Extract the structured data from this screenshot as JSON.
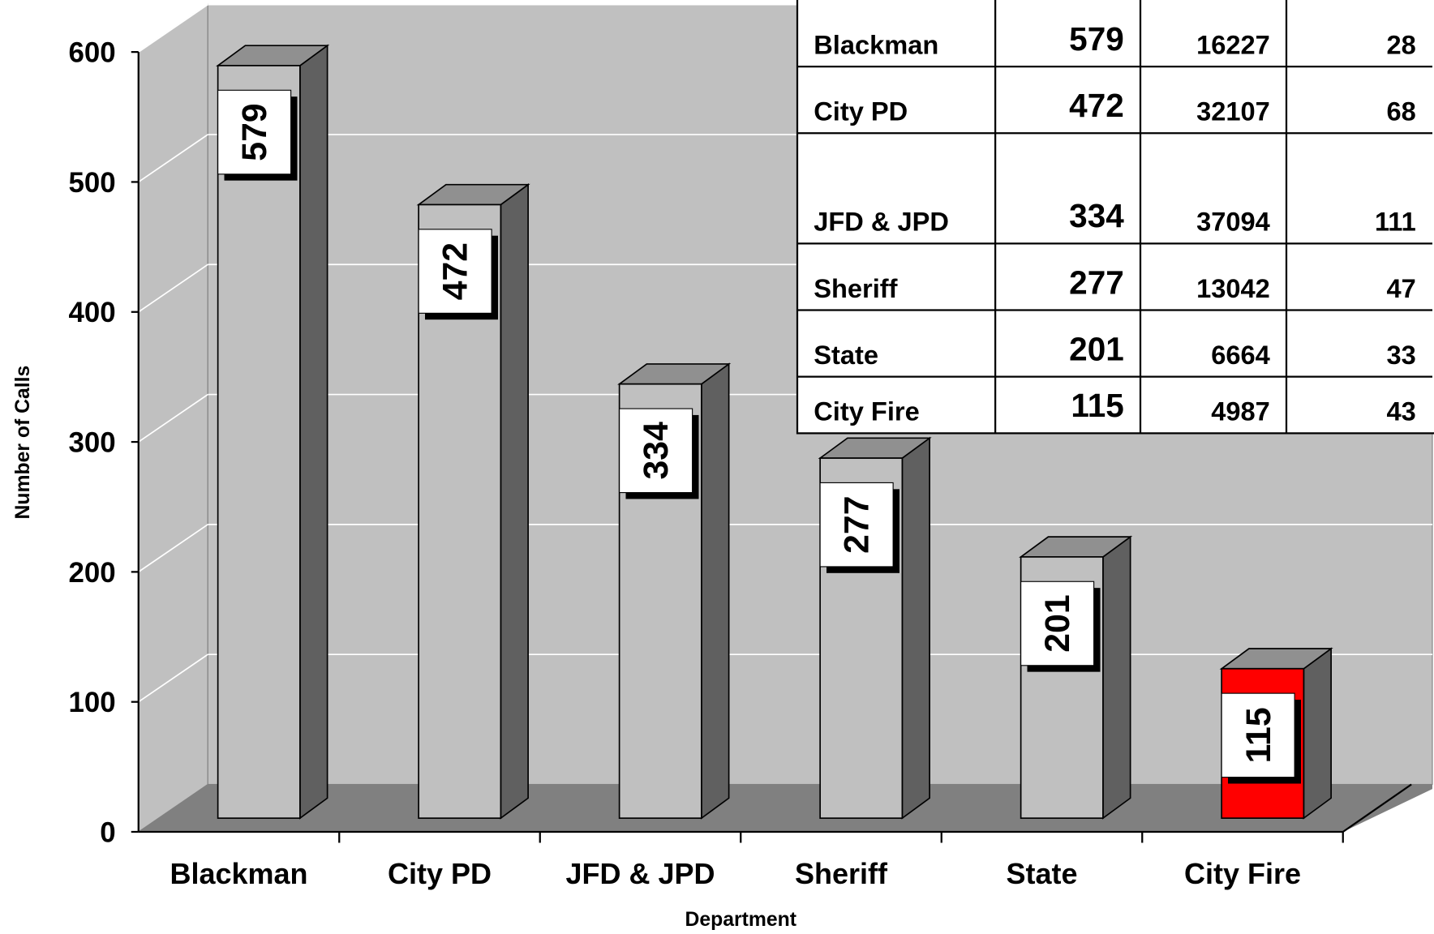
{
  "chart_data": {
    "type": "bar3d",
    "categories": [
      "Blackman",
      "City PD",
      "JFD & JPD",
      "Sheriff",
      "State",
      "City Fire"
    ],
    "values": [
      579,
      472,
      334,
      277,
      201,
      115
    ],
    "colors": [
      "#c0c0c0",
      "#c0c0c0",
      "#c0c0c0",
      "#c0c0c0",
      "#c0c0c0",
      "#ff0000"
    ],
    "ylim": [
      0,
      600
    ],
    "yticks": [
      0,
      100,
      200,
      300,
      400,
      500,
      600
    ],
    "grid": true,
    "ylabel": "Number of Calls",
    "xlabel": "Department"
  },
  "table": {
    "rows": [
      [
        "Blackman",
        579,
        16227,
        28
      ],
      [
        "City PD",
        472,
        32107,
        68
      ],
      [
        "JFD & JPD",
        334,
        37094,
        111
      ],
      [
        "Sheriff",
        277,
        13042,
        47
      ],
      [
        "State",
        201,
        6664,
        33
      ],
      [
        "City Fire",
        115,
        4987,
        43
      ]
    ]
  }
}
